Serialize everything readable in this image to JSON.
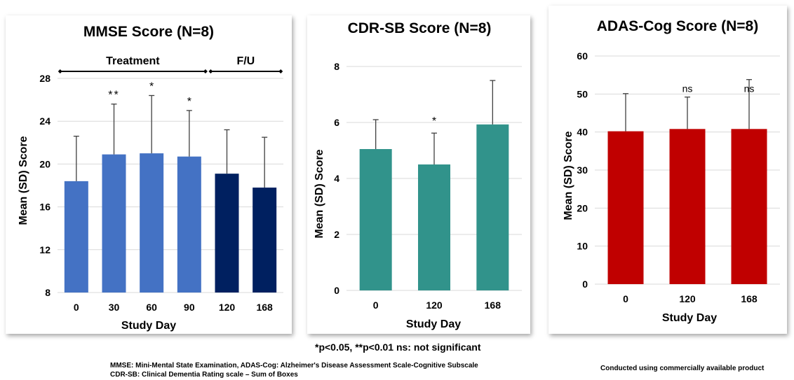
{
  "chart_data": [
    {
      "type": "bar",
      "title": "MMSE Score (N=8)",
      "xlabel": "Study Day",
      "ylabel": "Mean (SD) Score",
      "ylim": [
        8,
        28
      ],
      "yticks": [
        8,
        12,
        16,
        20,
        24,
        28
      ],
      "categories": [
        "0",
        "30",
        "60",
        "90",
        "120",
        "168"
      ],
      "values": [
        18.4,
        20.9,
        21.0,
        20.7,
        19.1,
        17.8
      ],
      "errors": [
        4.2,
        4.7,
        5.4,
        4.3,
        4.1,
        4.7
      ],
      "colors": [
        "#4472c4",
        "#4472c4",
        "#4472c4",
        "#4472c4",
        "#002060",
        "#002060"
      ],
      "annotations": [
        "",
        "**",
        "*",
        "*",
        "",
        ""
      ],
      "brackets": [
        {
          "label": "Treatment",
          "from": "0",
          "to": "90"
        },
        {
          "label": "F/U",
          "from": "120",
          "to": "168"
        }
      ],
      "grid": true
    },
    {
      "type": "bar",
      "title": "CDR-SB Score (N=8)",
      "xlabel": "Study Day",
      "ylabel": "Mean (SD) Score",
      "ylim": [
        0,
        8
      ],
      "yticks": [
        0,
        2,
        4,
        6,
        8
      ],
      "categories": [
        "0",
        "120",
        "168"
      ],
      "values": [
        5.05,
        4.5,
        5.93
      ],
      "errors": [
        1.05,
        1.12,
        1.57
      ],
      "colors": [
        "#31938b",
        "#31938b",
        "#31938b"
      ],
      "annotations": [
        "",
        "*",
        ""
      ],
      "grid": true
    },
    {
      "type": "bar",
      "title": "ADAS-Cog Score (N=8)",
      "xlabel": "Study Day",
      "ylabel": "Mean (SD) Score",
      "ylim": [
        0,
        60
      ],
      "yticks": [
        0,
        10,
        20,
        30,
        40,
        50,
        60
      ],
      "categories": [
        "0",
        "120",
        "168"
      ],
      "values": [
        40.2,
        40.8,
        40.8
      ],
      "errors": [
        9.9,
        8.4,
        13.0
      ],
      "colors": [
        "#c00000",
        "#c00000",
        "#c00000"
      ],
      "annotations": [
        "",
        "ns",
        "ns"
      ],
      "grid": true
    }
  ],
  "footnotes": {
    "significance": "*p<0.05, **p<0.01  ns: not significant",
    "definition_1": "MMSE: Mini-Mental State Examination, ADAS-Cog: Alzheimer's Disease Assessment Scale-Cognitive Subscale",
    "definition_2": "CDR-SB: Clinical Dementia Rating scale – Sum of Boxes",
    "conducted": "Conducted using commercially available product"
  }
}
